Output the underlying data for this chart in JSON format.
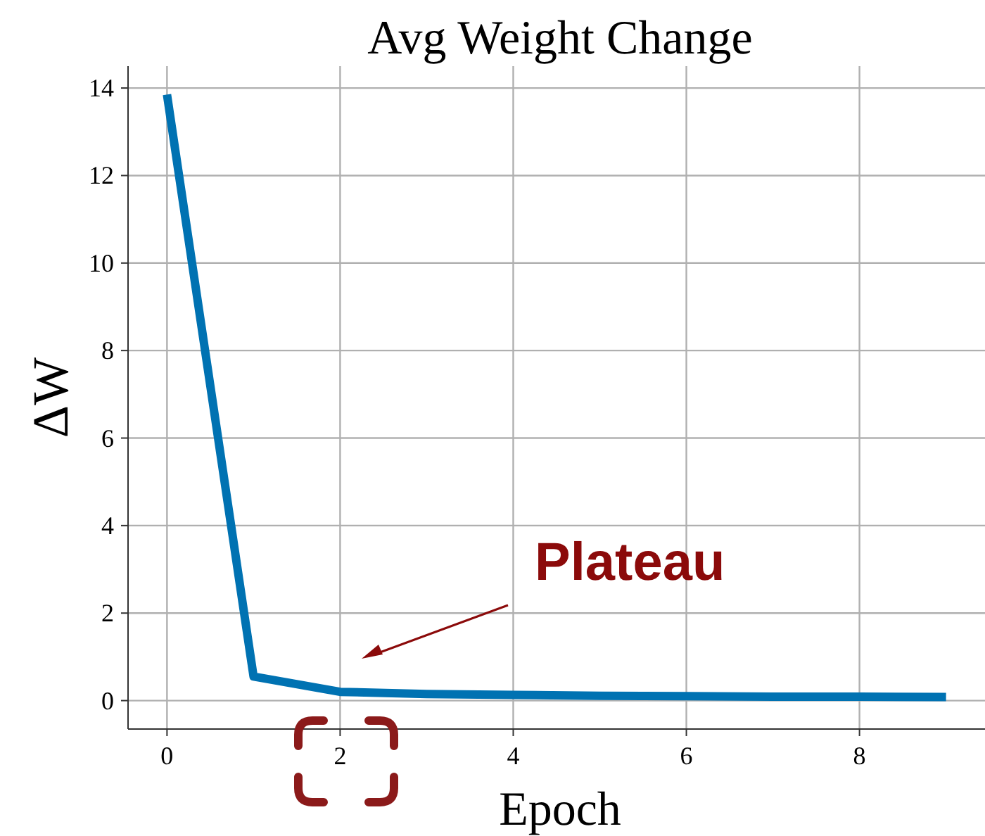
{
  "chart_data": {
    "type": "line",
    "title": "Avg Weight Change",
    "xlabel": "Epoch",
    "ylabel": "ΔW",
    "x": [
      0,
      1,
      2,
      3,
      4,
      5,
      6,
      7,
      8,
      9
    ],
    "series": [
      {
        "color": "#0072b2",
        "values": [
          13.85,
          0.55,
          0.2,
          0.15,
          0.13,
          0.11,
          0.1,
          0.09,
          0.09,
          0.08
        ]
      }
    ],
    "xlim": [
      -0.45,
      9.45
    ],
    "xticks": [
      0,
      2,
      4,
      6,
      8
    ],
    "ylim": [
      -0.65,
      14.5
    ],
    "yticks": [
      0,
      2,
      4,
      6,
      8,
      10,
      12,
      14
    ],
    "grid": true,
    "marker": "none",
    "line_style": "solid",
    "annotations": [
      "Plateau"
    ]
  }
}
